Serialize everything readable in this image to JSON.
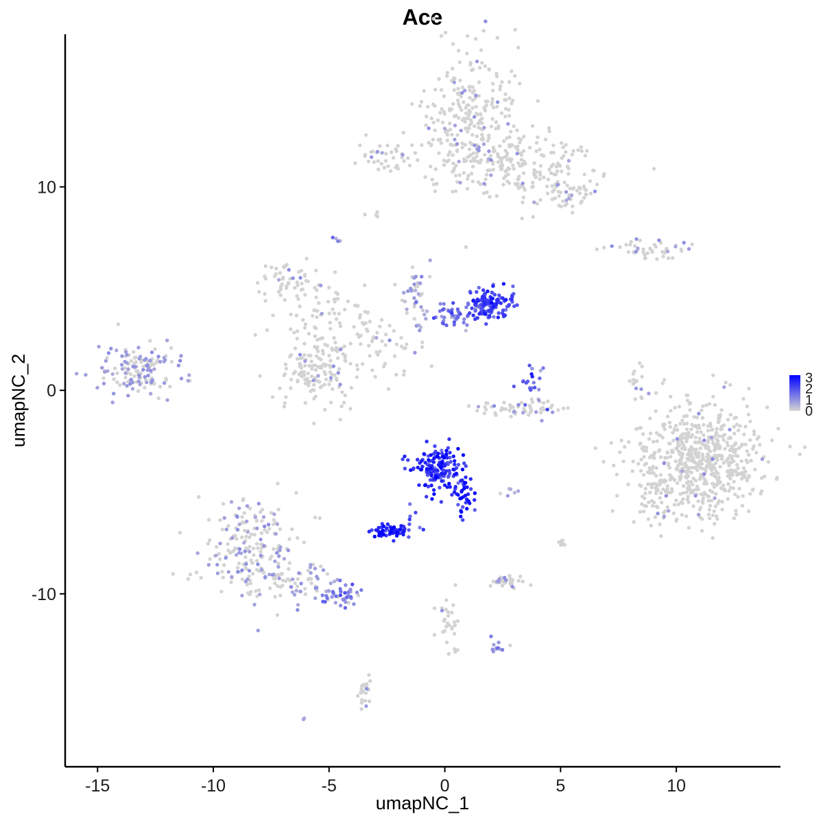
{
  "chart_data": {
    "type": "scatter",
    "title": "Ace",
    "xlabel": "umapNC_1",
    "ylabel": "umapNC_2",
    "xlim": [
      -16.4,
      14.5
    ],
    "ylim": [
      -18.5,
      17.5
    ],
    "x_ticks": [
      -15,
      -10,
      -5,
      0,
      5,
      10
    ],
    "x_tick_labels": [
      "-15",
      "-10",
      "-5",
      "0",
      "5",
      "10"
    ],
    "y_ticks": [
      -10,
      0,
      10
    ],
    "y_tick_labels": [
      "-10",
      "0",
      "10"
    ],
    "grid": false,
    "legend": {
      "placement": "right",
      "type": "colorbar",
      "min": 0,
      "max": 3.2,
      "ticks": [
        0,
        1,
        2,
        3
      ],
      "tick_labels": [
        "0",
        "1",
        "2",
        "3"
      ],
      "color_low": "#d3d3d3",
      "color_high": "#0000ff"
    },
    "clusters": [
      {
        "center": [
          1.3,
          13.5
        ],
        "spread": [
          1.1,
          1.6
        ],
        "n": 260,
        "expr": 0.02
      },
      {
        "center": [
          3.8,
          11.0
        ],
        "spread": [
          1.5,
          0.9
        ],
        "n": 160,
        "expr": 0.02
      },
      {
        "center": [
          5.6,
          9.7
        ],
        "spread": [
          0.6,
          0.4
        ],
        "n": 40,
        "expr": 0.03
      },
      {
        "center": [
          -2.5,
          11.5
        ],
        "spread": [
          0.6,
          0.35
        ],
        "n": 40,
        "expr": 0.03
      },
      {
        "center": [
          1.0,
          11.4
        ],
        "spread": [
          0.9,
          0.5
        ],
        "n": 40,
        "expr": 0.02
      },
      {
        "center": [
          -3.0,
          8.6
        ],
        "spread": [
          0.15,
          0.12
        ],
        "n": 6,
        "expr": 0.0
      },
      {
        "center": [
          -4.6,
          7.4
        ],
        "spread": [
          0.1,
          0.1
        ],
        "n": 4,
        "expr": 0.8
      },
      {
        "center": [
          9.0,
          6.9
        ],
        "spread": [
          1.1,
          0.25
        ],
        "n": 45,
        "expr": 0.05
      },
      {
        "center": [
          -6.8,
          5.5
        ],
        "spread": [
          0.6,
          0.5
        ],
        "n": 45,
        "expr": 0.03
      },
      {
        "center": [
          -5.0,
          3.6
        ],
        "spread": [
          1.3,
          0.9
        ],
        "n": 70,
        "expr": 0.03
      },
      {
        "center": [
          -5.5,
          1.0
        ],
        "spread": [
          0.9,
          1.0
        ],
        "n": 150,
        "expr": 0.02
      },
      {
        "center": [
          -2.5,
          2.2
        ],
        "spread": [
          0.9,
          0.8
        ],
        "n": 45,
        "expr": 0.05
      },
      {
        "center": [
          -1.2,
          4.8
        ],
        "spread": [
          0.4,
          0.8
        ],
        "n": 40,
        "expr": 0.5
      },
      {
        "center": [
          0.5,
          3.9
        ],
        "spread": [
          0.7,
          0.3
        ],
        "n": 50,
        "expr": 1.3
      },
      {
        "center": [
          2.0,
          4.2
        ],
        "spread": [
          0.5,
          0.4
        ],
        "n": 120,
        "expr": 2.2
      },
      {
        "center": [
          3.6,
          0.5
        ],
        "spread": [
          0.4,
          0.5
        ],
        "n": 20,
        "expr": 1.6
      },
      {
        "center": [
          3.4,
          -0.9
        ],
        "spread": [
          1.1,
          0.2
        ],
        "n": 60,
        "expr": 0.05
      },
      {
        "center": [
          -13.3,
          1.0
        ],
        "spread": [
          0.9,
          0.6
        ],
        "n": 140,
        "expr": 0.15
      },
      {
        "center": [
          8.3,
          0.3
        ],
        "spread": [
          0.15,
          0.6
        ],
        "n": 15,
        "expr": 0.05
      },
      {
        "center": [
          11.0,
          -3.5
        ],
        "spread": [
          1.4,
          1.4
        ],
        "n": 650,
        "expr": 0.01
      },
      {
        "center": [
          9.3,
          -5.1
        ],
        "spread": [
          0.5,
          0.6
        ],
        "n": 40,
        "expr": 0.02
      },
      {
        "center": [
          -0.3,
          -3.8
        ],
        "spread": [
          0.5,
          0.6
        ],
        "n": 150,
        "expr": 2.4
      },
      {
        "center": [
          0.8,
          -4.9
        ],
        "spread": [
          0.25,
          0.6
        ],
        "n": 40,
        "expr": 2.6
      },
      {
        "center": [
          -1.4,
          -6.3
        ],
        "spread": [
          0.25,
          0.35
        ],
        "n": 10,
        "expr": 1.8
      },
      {
        "center": [
          -2.4,
          -6.9
        ],
        "spread": [
          0.4,
          0.15
        ],
        "n": 55,
        "expr": 2.6
      },
      {
        "center": [
          -8.4,
          -7.8
        ],
        "spread": [
          1.0,
          1.3
        ],
        "n": 200,
        "expr": 0.1
      },
      {
        "center": [
          -6.5,
          -9.4
        ],
        "spread": [
          0.9,
          0.5
        ],
        "n": 60,
        "expr": 0.15
      },
      {
        "center": [
          -4.6,
          -10.0
        ],
        "spread": [
          0.5,
          0.3
        ],
        "n": 45,
        "expr": 1.0
      },
      {
        "center": [
          2.7,
          -9.4
        ],
        "spread": [
          0.4,
          0.15
        ],
        "n": 35,
        "expr": 0.05
      },
      {
        "center": [
          0.2,
          -11.4
        ],
        "spread": [
          0.3,
          0.7
        ],
        "n": 30,
        "expr": 0.02
      },
      {
        "center": [
          2.3,
          -12.6
        ],
        "spread": [
          0.2,
          0.15
        ],
        "n": 12,
        "expr": 0.7
      },
      {
        "center": [
          -3.5,
          -14.8
        ],
        "spread": [
          0.15,
          0.4
        ],
        "n": 25,
        "expr": 0.02
      },
      {
        "center": [
          5.0,
          -7.4
        ],
        "spread": [
          0.1,
          0.2
        ],
        "n": 8,
        "expr": 0.0
      },
      {
        "center": [
          2.8,
          -5.0
        ],
        "spread": [
          0.2,
          0.1
        ],
        "n": 6,
        "expr": 0.4
      },
      {
        "center": [
          -6.1,
          -16.1
        ],
        "spread": [
          0.05,
          0.05
        ],
        "n": 2,
        "expr": 0.6
      }
    ]
  }
}
